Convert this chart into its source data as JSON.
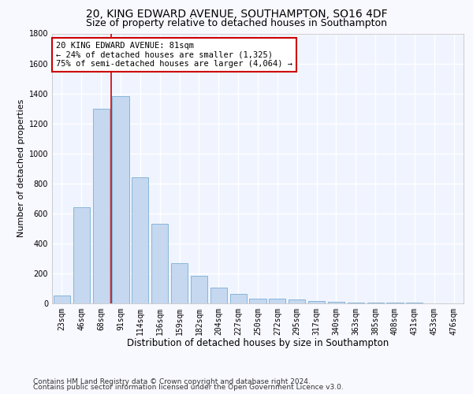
{
  "title1": "20, KING EDWARD AVENUE, SOUTHAMPTON, SO16 4DF",
  "title2": "Size of property relative to detached houses in Southampton",
  "xlabel": "Distribution of detached houses by size in Southampton",
  "ylabel": "Number of detached properties",
  "categories": [
    "23sqm",
    "46sqm",
    "68sqm",
    "91sqm",
    "114sqm",
    "136sqm",
    "159sqm",
    "182sqm",
    "204sqm",
    "227sqm",
    "250sqm",
    "272sqm",
    "295sqm",
    "317sqm",
    "340sqm",
    "363sqm",
    "385sqm",
    "408sqm",
    "431sqm",
    "453sqm",
    "476sqm"
  ],
  "values": [
    50,
    640,
    1300,
    1380,
    840,
    530,
    270,
    185,
    105,
    65,
    30,
    30,
    25,
    15,
    10,
    5,
    5,
    5,
    3,
    2,
    2
  ],
  "bar_color": "#c5d8f0",
  "bar_edge_color": "#7aadd4",
  "vline_color": "#cc0000",
  "vline_x_index": 2.5,
  "annotation_text": "20 KING EDWARD AVENUE: 81sqm\n← 24% of detached houses are smaller (1,325)\n75% of semi-detached houses are larger (4,064) →",
  "annotation_box_color": "#ffffff",
  "annotation_box_edge": "#cc0000",
  "ylim": [
    0,
    1800
  ],
  "yticks": [
    0,
    200,
    400,
    600,
    800,
    1000,
    1200,
    1400,
    1600,
    1800
  ],
  "footer1": "Contains HM Land Registry data © Crown copyright and database right 2024.",
  "footer2": "Contains public sector information licensed under the Open Government Licence v3.0.",
  "bg_color": "#f8f8ff",
  "plot_bg_color": "#f0f4ff",
  "grid_color": "#ffffff",
  "title1_fontsize": 10,
  "title2_fontsize": 9,
  "xlabel_fontsize": 8.5,
  "ylabel_fontsize": 8,
  "tick_fontsize": 7,
  "annotation_fontsize": 7.5,
  "footer_fontsize": 6.5
}
